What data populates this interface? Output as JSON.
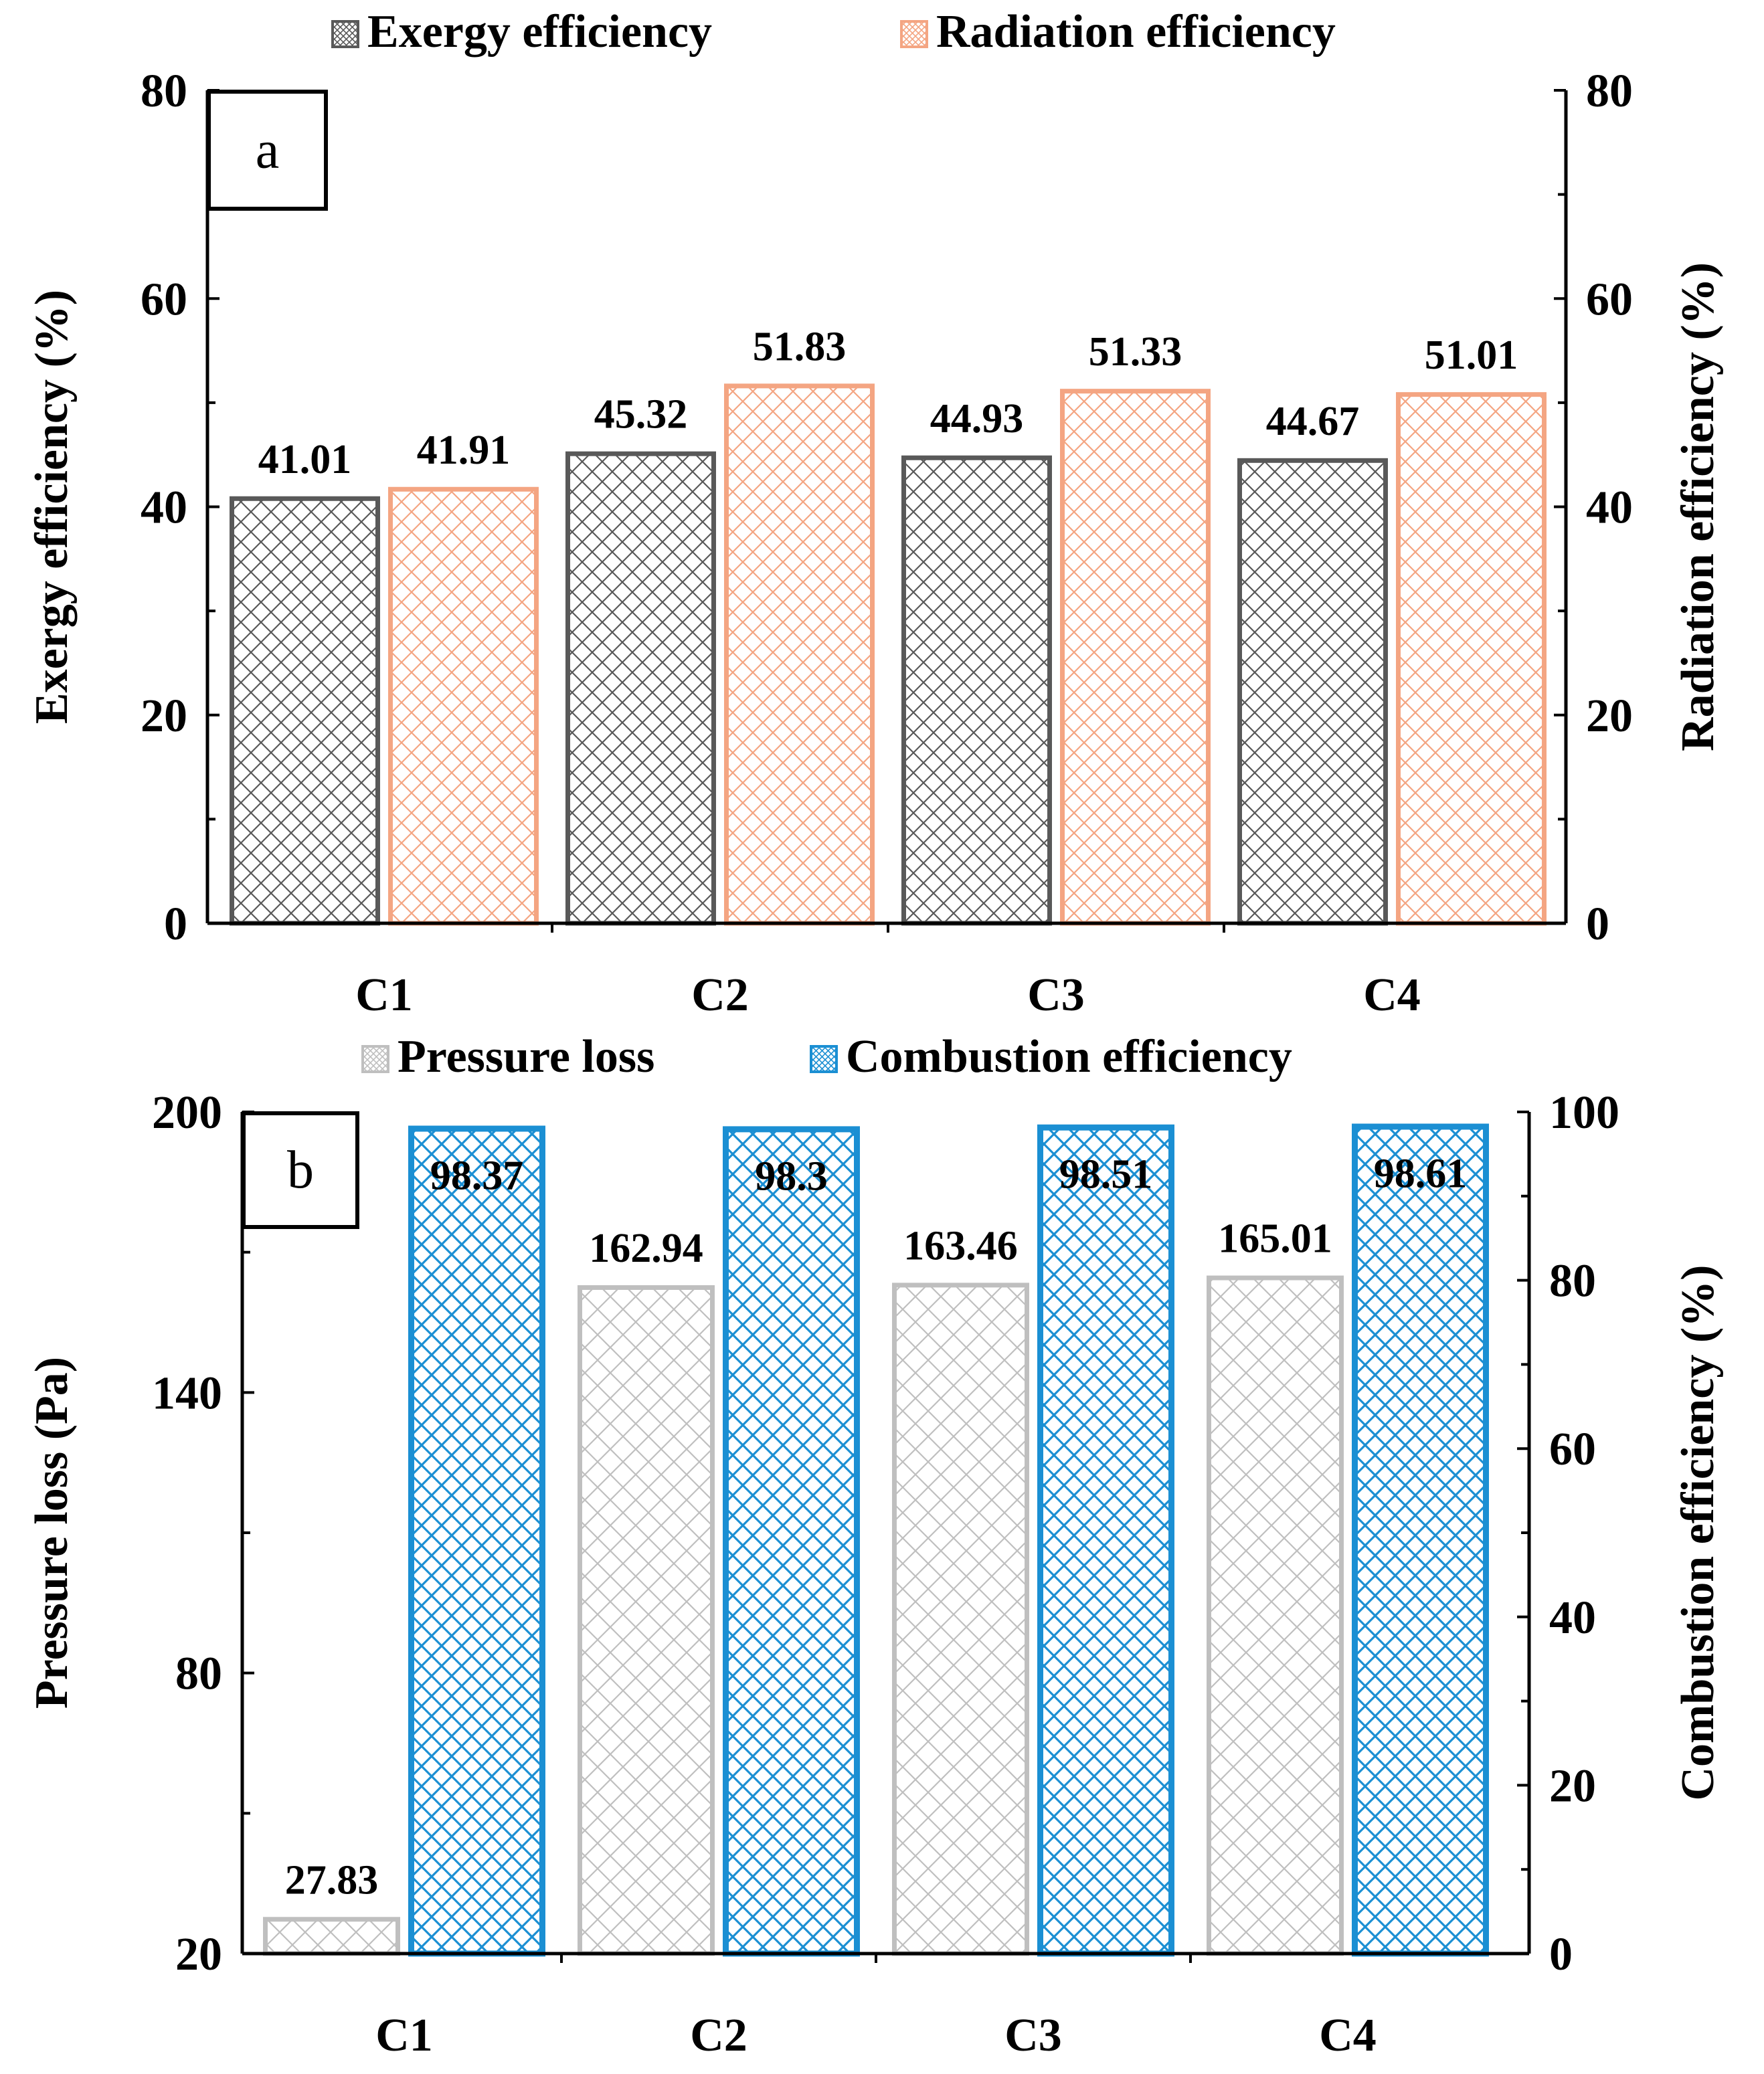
{
  "chart_data": [
    {
      "type": "bar",
      "panel_label": "a",
      "categories": [
        "C1",
        "C2",
        "C3",
        "C4"
      ],
      "y_left": {
        "label": "Exergy efficiency (%)",
        "range": [
          0,
          80
        ],
        "ticks": [
          0,
          20,
          40,
          60,
          80
        ],
        "minor_step": 10
      },
      "y_right": {
        "label": "Radiation efficiency (%)",
        "range": [
          0,
          80
        ],
        "ticks": [
          0,
          20,
          40,
          60,
          80
        ],
        "minor_step": 10
      },
      "series": [
        {
          "name": "Exergy efficiency",
          "axis": "left",
          "values": [
            41.01,
            45.32,
            44.93,
            44.67
          ],
          "labels": [
            "41.01",
            "45.32",
            "44.93",
            "44.67"
          ],
          "color": "#595959",
          "label_color": "#000000"
        },
        {
          "name": "Radiation efficiency",
          "axis": "right",
          "values": [
            41.91,
            51.83,
            51.33,
            51.01
          ],
          "labels": [
            "41.91",
            "51.83",
            "51.33",
            "51.01"
          ],
          "color": "#F4A582",
          "label_color": "#000000"
        }
      ],
      "legend_position": "top"
    },
    {
      "type": "bar",
      "panel_label": "b",
      "categories": [
        "C1",
        "C2",
        "C3",
        "C4"
      ],
      "y_left": {
        "label": "Pressure loss (Pa)",
        "range": [
          20,
          200
        ],
        "ticks": [
          20,
          80,
          140,
          200
        ],
        "minor_step": 30
      },
      "y_right": {
        "label": "Combustion efficiency (%)",
        "range": [
          0,
          100
        ],
        "ticks": [
          0,
          20,
          40,
          60,
          80,
          100
        ],
        "minor_step": 10
      },
      "series": [
        {
          "name": "Pressure loss",
          "axis": "left",
          "values": [
            27.83,
            162.94,
            163.46,
            165.01
          ],
          "labels": [
            "27.83",
            "162.94",
            "163.46",
            "165.01"
          ],
          "color": "#BFBFBF",
          "label_color": "#000000"
        },
        {
          "name": "Combustion efficiency",
          "axis": "right",
          "values": [
            98.37,
            98.3,
            98.51,
            98.61
          ],
          "labels": [
            "98.37",
            "98.3",
            "98.51",
            "98.61"
          ],
          "color": "#1B8FD3",
          "label_color": "#000000"
        }
      ],
      "legend_position": "top"
    }
  ]
}
